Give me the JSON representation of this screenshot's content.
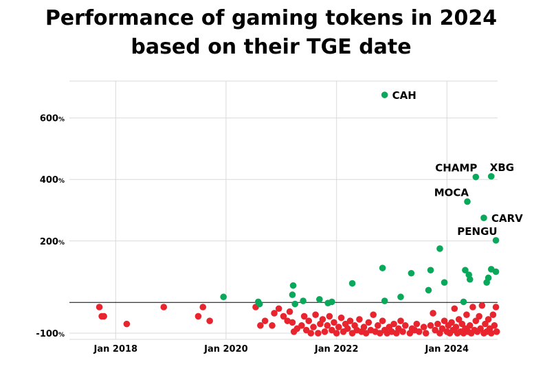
{
  "chart_data": {
    "type": "scatter",
    "title_lines": [
      "Performance of gaming tokens in 2024",
      "based on their TGE date"
    ],
    "xlabel": "",
    "ylabel": "",
    "x_range": [
      "2017-03-01",
      "2024-12-01"
    ],
    "ylim": [
      -120,
      720
    ],
    "x_ticks": [
      {
        "date": "2018-01-01",
        "label": "Jan 2018"
      },
      {
        "date": "2020-01-01",
        "label": "Jan 2020"
      },
      {
        "date": "2022-01-01",
        "label": "Jan 2022"
      },
      {
        "date": "2024-01-01",
        "label": "Jan 2024"
      }
    ],
    "y_ticks": [
      {
        "value": 600,
        "label": "600",
        "unit": "%"
      },
      {
        "value": 400,
        "label": "400",
        "unit": "%"
      },
      {
        "value": 200,
        "label": "200",
        "unit": "%"
      },
      {
        "value": -100,
        "label": "-100",
        "unit": "%"
      }
    ],
    "grid": true,
    "baseline": 0,
    "colors": {
      "positive": "#0aa85a",
      "negative": "#e8242e",
      "grid": "#d9d9d9",
      "axis": "#000000"
    },
    "labeled_points": [
      {
        "label": "CAH",
        "date": "2022-11-15",
        "value": 675,
        "position": "right"
      },
      {
        "label": "CHAMP",
        "date": "2024-07-10",
        "value": 408,
        "position": "left-above"
      },
      {
        "label": "XBG",
        "date": "2024-10-20",
        "value": 410,
        "position": "right-above"
      },
      {
        "label": "MOCA",
        "date": "2024-05-15",
        "value": 328,
        "position": "left-above"
      },
      {
        "label": "CARV",
        "date": "2024-09-01",
        "value": 275,
        "position": "right"
      },
      {
        "label": "PENGU",
        "date": "2024-11-20",
        "value": 202,
        "position": "left-above"
      }
    ],
    "positive_points": [
      [
        "2019-12-15",
        18
      ],
      [
        "2020-08-01",
        2
      ],
      [
        "2020-08-10",
        -5
      ],
      [
        "2021-03-20",
        55
      ],
      [
        "2021-03-15",
        25
      ],
      [
        "2021-04-01",
        -5
      ],
      [
        "2021-05-25",
        5
      ],
      [
        "2021-09-10",
        10
      ],
      [
        "2021-11-05",
        -2
      ],
      [
        "2021-12-01",
        2
      ],
      [
        "2022-04-15",
        62
      ],
      [
        "2022-11-01",
        112
      ],
      [
        "2022-11-15",
        5
      ],
      [
        "2023-03-01",
        18
      ],
      [
        "2023-05-10",
        95
      ],
      [
        "2023-09-15",
        105
      ],
      [
        "2023-09-01",
        40
      ],
      [
        "2023-11-15",
        175
      ],
      [
        "2023-12-15",
        65
      ],
      [
        "2024-05-01",
        105
      ],
      [
        "2024-05-25",
        90
      ],
      [
        "2024-06-01",
        75
      ],
      [
        "2024-04-20",
        2
      ],
      [
        "2024-09-20",
        65
      ],
      [
        "2024-10-01",
        80
      ],
      [
        "2024-10-20",
        108
      ],
      [
        "2024-11-20",
        100
      ]
    ],
    "negative_points": [
      [
        "2017-09-15",
        -15
      ],
      [
        "2017-10-01",
        -45
      ],
      [
        "2017-10-15",
        -45
      ],
      [
        "2018-03-15",
        -70
      ],
      [
        "2018-11-15",
        -15
      ],
      [
        "2019-07-01",
        -45
      ],
      [
        "2019-08-01",
        -15
      ],
      [
        "2019-09-15",
        -60
      ],
      [
        "2020-07-15",
        -15
      ],
      [
        "2020-08-15",
        -75
      ],
      [
        "2020-09-15",
        -60
      ],
      [
        "2020-11-01",
        -75
      ],
      [
        "2020-11-15",
        -35
      ],
      [
        "2020-12-15",
        -20
      ],
      [
        "2021-01-15",
        -45
      ],
      [
        "2021-02-10",
        -60
      ],
      [
        "2021-02-25",
        -30
      ],
      [
        "2021-03-15",
        -65
      ],
      [
        "2021-03-25",
        -95
      ],
      [
        "2021-04-15",
        -85
      ],
      [
        "2021-05-15",
        -75
      ],
      [
        "2021-06-01",
        -45
      ],
      [
        "2021-06-15",
        -90
      ],
      [
        "2021-07-01",
        -60
      ],
      [
        "2021-07-15",
        -100
      ],
      [
        "2021-08-01",
        -80
      ],
      [
        "2021-08-15",
        -40
      ],
      [
        "2021-09-01",
        -100
      ],
      [
        "2021-09-15",
        -70
      ],
      [
        "2021-10-01",
        -55
      ],
      [
        "2021-10-15",
        -95
      ],
      [
        "2021-11-01",
        -75
      ],
      [
        "2021-11-15",
        -45
      ],
      [
        "2021-12-01",
        -90
      ],
      [
        "2021-12-15",
        -65
      ],
      [
        "2022-01-01",
        -100
      ],
      [
        "2022-01-15",
        -80
      ],
      [
        "2022-02-01",
        -50
      ],
      [
        "2022-02-15",
        -95
      ],
      [
        "2022-03-01",
        -70
      ],
      [
        "2022-03-15",
        -85
      ],
      [
        "2022-04-01",
        -60
      ],
      [
        "2022-04-15",
        -100
      ],
      [
        "2022-05-01",
        -75
      ],
      [
        "2022-05-15",
        -90
      ],
      [
        "2022-06-01",
        -55
      ],
      [
        "2022-06-15",
        -95
      ],
      [
        "2022-07-01",
        -80
      ],
      [
        "2022-07-15",
        -100
      ],
      [
        "2022-08-01",
        -65
      ],
      [
        "2022-08-15",
        -90
      ],
      [
        "2022-09-01",
        -40
      ],
      [
        "2022-09-15",
        -95
      ],
      [
        "2022-10-01",
        -75
      ],
      [
        "2022-10-15",
        -100
      ],
      [
        "2022-11-01",
        -60
      ],
      [
        "2022-11-15",
        -90
      ],
      [
        "2022-12-01",
        -100
      ],
      [
        "2022-12-15",
        -80
      ],
      [
        "2023-01-01",
        -95
      ],
      [
        "2023-01-15",
        -70
      ],
      [
        "2023-02-01",
        -100
      ],
      [
        "2023-02-15",
        -85
      ],
      [
        "2023-03-01",
        -60
      ],
      [
        "2023-03-15",
        -95
      ],
      [
        "2023-04-01",
        -75
      ],
      [
        "2023-05-01",
        -100
      ],
      [
        "2023-05-15",
        -85
      ],
      [
        "2023-06-01",
        -90
      ],
      [
        "2023-06-15",
        -70
      ],
      [
        "2023-07-01",
        -95
      ],
      [
        "2023-08-01",
        -80
      ],
      [
        "2023-08-15",
        -100
      ],
      [
        "2023-09-15",
        -75
      ],
      [
        "2023-10-01",
        -35
      ],
      [
        "2023-10-15",
        -90
      ],
      [
        "2023-11-01",
        -70
      ],
      [
        "2023-11-15",
        -100
      ],
      [
        "2023-12-01",
        -85
      ],
      [
        "2023-12-15",
        -60
      ],
      [
        "2024-01-01",
        -95
      ],
      [
        "2024-01-10",
        -75
      ],
      [
        "2024-01-20",
        -100
      ],
      [
        "2024-02-01",
        -65
      ],
      [
        "2024-02-10",
        -90
      ],
      [
        "2024-02-20",
        -20
      ],
      [
        "2024-03-01",
        -80
      ],
      [
        "2024-03-10",
        -100
      ],
      [
        "2024-03-20",
        -55
      ],
      [
        "2024-04-01",
        -95
      ],
      [
        "2024-04-10",
        -70
      ],
      [
        "2024-04-20",
        -100
      ],
      [
        "2024-05-01",
        -85
      ],
      [
        "2024-05-10",
        -40
      ],
      [
        "2024-05-20",
        -95
      ],
      [
        "2024-06-01",
        -75
      ],
      [
        "2024-06-10",
        -100
      ],
      [
        "2024-06-20",
        -15
      ],
      [
        "2024-07-01",
        -90
      ],
      [
        "2024-07-10",
        -60
      ],
      [
        "2024-07-20",
        -95
      ],
      [
        "2024-08-01",
        -45
      ],
      [
        "2024-08-10",
        -85
      ],
      [
        "2024-08-20",
        -10
      ],
      [
        "2024-09-01",
        -100
      ],
      [
        "2024-09-10",
        -70
      ],
      [
        "2024-09-20",
        -95
      ],
      [
        "2024-10-01",
        -55
      ],
      [
        "2024-10-10",
        -85
      ],
      [
        "2024-10-20",
        -100
      ],
      [
        "2024-11-01",
        -40
      ],
      [
        "2024-11-10",
        -75
      ],
      [
        "2024-11-20",
        -15
      ],
      [
        "2024-11-25",
        -95
      ]
    ]
  }
}
